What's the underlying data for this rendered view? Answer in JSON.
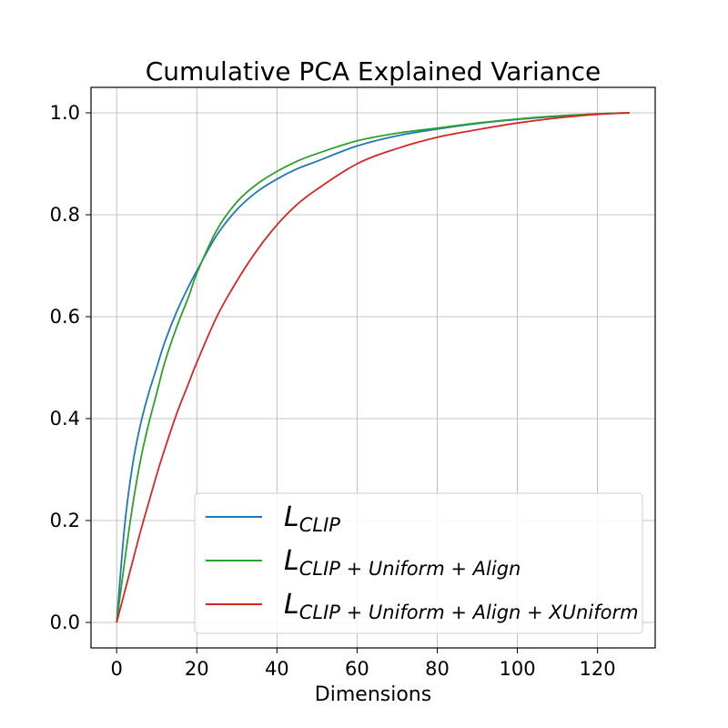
{
  "chart_data": {
    "type": "line",
    "title": "Cumulative PCA Explained Variance",
    "xlabel": "Dimensions",
    "ylabel": "",
    "xlim": [
      -6.4,
      134.4
    ],
    "ylim": [
      -0.05,
      1.05
    ],
    "xticks": [
      0,
      20,
      40,
      60,
      80,
      100,
      120
    ],
    "yticks": [
      0.0,
      0.2,
      0.4,
      0.6,
      0.8,
      1.0
    ],
    "xtick_labels": [
      "0",
      "20",
      "40",
      "60",
      "80",
      "100",
      "120"
    ],
    "ytick_labels": [
      "0.0",
      "0.2",
      "0.4",
      "0.6",
      "0.8",
      "1.0"
    ],
    "grid": true,
    "legend_position": "lower-right",
    "x": [
      0,
      2,
      4,
      6,
      8,
      10,
      12,
      15,
      18,
      20,
      25,
      30,
      35,
      40,
      45,
      50,
      60,
      70,
      80,
      90,
      100,
      110,
      120,
      128
    ],
    "series": [
      {
        "name": "L_CLIP",
        "legend_main": "L",
        "legend_sub": "CLIP",
        "color": "#1f77b4",
        "values": [
          0.0,
          0.19,
          0.31,
          0.39,
          0.45,
          0.5,
          0.55,
          0.61,
          0.66,
          0.69,
          0.76,
          0.81,
          0.845,
          0.87,
          0.89,
          0.905,
          0.935,
          0.955,
          0.968,
          0.979,
          0.987,
          0.993,
          0.998,
          1.0
        ]
      },
      {
        "name": "L_CLIP+Uniform+Align",
        "legend_main": "L",
        "legend_sub": "CLIP + Uniform + Align",
        "color": "#2ca02c",
        "values": [
          0.0,
          0.12,
          0.23,
          0.32,
          0.39,
          0.45,
          0.51,
          0.58,
          0.64,
          0.685,
          0.77,
          0.825,
          0.86,
          0.885,
          0.905,
          0.92,
          0.945,
          0.96,
          0.97,
          0.98,
          0.988,
          0.994,
          0.998,
          1.0
        ]
      },
      {
        "name": "L_CLIP+Uniform+Align+XUniform",
        "legend_main": "L",
        "legend_sub": "CLIP + Uniform + Align + XUniform",
        "color": "#d62728",
        "values": [
          0.0,
          0.06,
          0.12,
          0.18,
          0.235,
          0.29,
          0.34,
          0.41,
          0.47,
          0.51,
          0.6,
          0.67,
          0.73,
          0.78,
          0.82,
          0.85,
          0.9,
          0.93,
          0.952,
          0.967,
          0.98,
          0.99,
          0.997,
          1.0
        ]
      }
    ]
  }
}
